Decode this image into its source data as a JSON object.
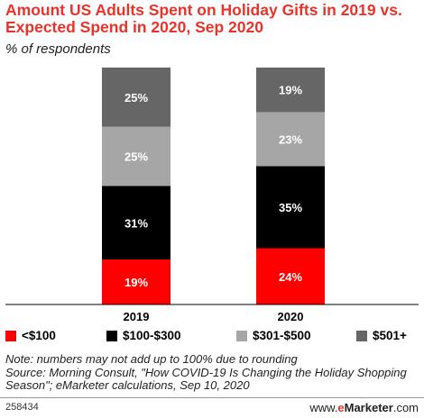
{
  "header": {
    "title": "Amount US Adults Spent on Holiday Gifts in 2019 vs. Expected Spend in 2020, Sep 2020",
    "subtitle": "% of respondents"
  },
  "chart_data": {
    "type": "bar",
    "stacked": true,
    "title": "Amount US Adults Spent on Holiday Gifts in 2019 vs. Expected Spend in 2020, Sep 2020",
    "subtitle": "% of respondents",
    "categories": [
      "2019",
      "2020"
    ],
    "series": [
      {
        "name": "<$100",
        "values": [
          19,
          24
        ],
        "color": "#ff0000"
      },
      {
        "name": "$100-$300",
        "values": [
          31,
          35
        ],
        "color": "#000000"
      },
      {
        "name": "$301-$500",
        "values": [
          25,
          23
        ],
        "color": "#a6a6a6"
      },
      {
        "name": "$501+",
        "values": [
          25,
          19
        ],
        "color": "#666666"
      }
    ],
    "value_suffix": "%",
    "legend_position": "bottom",
    "grid": false
  },
  "notes": {
    "line1": "Note: numbers may not add up to 100% due to rounding",
    "line2": "Source: Morning Consult, \"How COVID-19 Is Changing the Holiday Shopping",
    "line3": "Season\"; eMarketer calculations, Sep 10, 2020"
  },
  "footer": {
    "id": "258434",
    "brand_prefix": "www.",
    "brand_e": "e",
    "brand_name": "Marketer",
    "brand_suffix": ".com"
  }
}
